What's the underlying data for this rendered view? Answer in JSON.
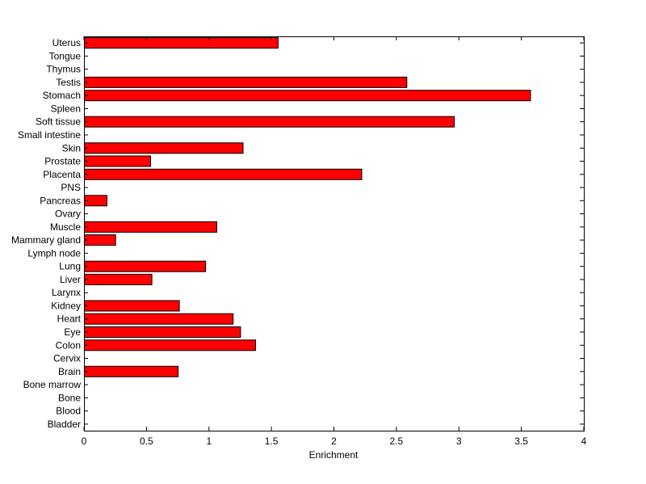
{
  "chart_data": {
    "type": "bar",
    "orientation": "horizontal",
    "title": "",
    "xlabel": "Enrichment",
    "ylabel": "",
    "xlim": [
      0,
      4
    ],
    "xticks": [
      "0",
      "0.5",
      "1",
      "1.5",
      "2",
      "2.5",
      "3",
      "3.5",
      "4"
    ],
    "grid": false,
    "legend": "none",
    "bar_color": "#ff0000",
    "categories": [
      "Uterus",
      "Tongue",
      "Thymus",
      "Testis",
      "Stomach",
      "Spleen",
      "Soft tissue",
      "Small intestine",
      "Skin",
      "Prostate",
      "Placenta",
      "PNS",
      "Pancreas",
      "Ovary",
      "Muscle",
      "Mammary gland",
      "Lymph node",
      "Lung",
      "Liver",
      "Larynx",
      "Kidney",
      "Heart",
      "Eye",
      "Colon",
      "Cervix",
      "Brain",
      "Bone marrow",
      "Bone",
      "Blood",
      "Bladder"
    ],
    "values": [
      1.55,
      0,
      0,
      2.58,
      3.57,
      0,
      2.96,
      0,
      1.27,
      0.53,
      2.22,
      0,
      0.18,
      0,
      1.06,
      0.25,
      0,
      0.97,
      0.54,
      0,
      0.76,
      1.19,
      1.25,
      1.37,
      0,
      0.75,
      0,
      0,
      0,
      0
    ]
  }
}
